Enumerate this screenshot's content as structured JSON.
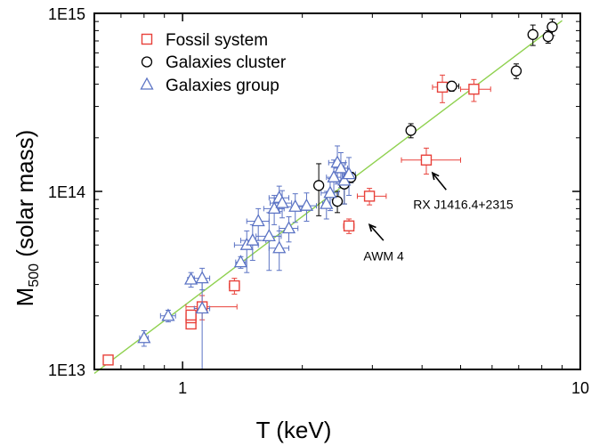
{
  "chart_data": {
    "type": "scatter",
    "xscale": "log",
    "yscale": "log",
    "xlim": [
      0.6,
      10
    ],
    "ylim": [
      10000000000000.0,
      1000000000000000.0
    ],
    "xlabel": "T (keV)",
    "ylabel_main": "M",
    "ylabel_sub": "500",
    "ylabel_rest": " (solar mass)",
    "x_ticks": [
      {
        "value": 1,
        "label": "1"
      },
      {
        "value": 10,
        "label": "10"
      }
    ],
    "y_ticks": [
      {
        "value": 10000000000000.0,
        "label": "1E13"
      },
      {
        "value": 100000000000000.0,
        "label": "1E14"
      },
      {
        "value": 1000000000000000.0,
        "label": "1E15"
      }
    ],
    "fit_line": {
      "from": [
        0.6,
        9500000000000.0
      ],
      "to": [
        9.0,
        910000000000000.0
      ],
      "color": "#8fd14f"
    },
    "series": [
      {
        "name": "Fossil system",
        "marker": "square",
        "color": "#e8413a",
        "points": [
          {
            "x": 0.65,
            "y": 11300000000000.0,
            "xerr": [
              0.015,
              0.015
            ],
            "yerr": [
              400000000000.0,
              400000000000.0
            ]
          },
          {
            "x": 1.05,
            "y": 18000000000000.0,
            "xerr": [
              0.02,
              0.02
            ],
            "yerr": [
              1000000000000.0,
              1000000000000.0
            ]
          },
          {
            "x": 1.05,
            "y": 19500000000000.0,
            "xerr": [
              0.02,
              0.02
            ],
            "yerr": [
              1200000000000.0,
              1200000000000.0
            ]
          },
          {
            "x": 1.05,
            "y": 20200000000000.0,
            "xerr": [
              0.02,
              0.02
            ],
            "yerr": [
              1200000000000.0,
              1200000000000.0
            ]
          },
          {
            "x": 1.12,
            "y": 22500000000000.0,
            "xerr": [
              0.1,
              0.25
            ],
            "yerr": [
              3500000000000.0,
              3500000000000.0
            ]
          },
          {
            "x": 1.35,
            "y": 29500000000000.0,
            "xerr": [
              0.04,
              0.04
            ],
            "yerr": [
              3000000000000.0,
              3000000000000.0
            ]
          },
          {
            "x": 2.62,
            "y": 64000000000000.0,
            "xerr": [
              0.08,
              0.08
            ],
            "yerr": [
              6000000000000.0,
              6000000000000.0
            ]
          },
          {
            "x": 2.95,
            "y": 94000000000000.0,
            "xerr": [
              0.2,
              0.3
            ],
            "yerr": [
              10000000000000.0,
              10000000000000.0
            ]
          },
          {
            "x": 4.1,
            "y": 150000000000000.0,
            "xerr": [
              0.55,
              0.9
            ],
            "yerr": [
              25000000000000.0,
              25000000000000.0
            ]
          },
          {
            "x": 4.5,
            "y": 385000000000000.0,
            "xerr": [
              0.25,
              0.35
            ],
            "yerr": [
              70000000000000.0,
              65000000000000.0
            ]
          },
          {
            "x": 5.4,
            "y": 375000000000000.0,
            "xerr": [
              0.4,
              0.55
            ],
            "yerr": [
              55000000000000.0,
              50000000000000.0
            ]
          }
        ]
      },
      {
        "name": "Galaxies cluster",
        "marker": "circle",
        "color": "#000000",
        "points": [
          {
            "x": 2.2,
            "y": 108000000000000.0,
            "xerr": [
              0,
              0
            ],
            "yerr": [
              35000000000000.0,
              35000000000000.0
            ]
          },
          {
            "x": 2.45,
            "y": 88000000000000.0,
            "xerr": [
              0,
              0
            ],
            "yerr": [
              12000000000000.0,
              12000000000000.0
            ]
          },
          {
            "x": 2.55,
            "y": 110000000000000.0,
            "xerr": [
              0,
              0
            ],
            "yerr": [
              25000000000000.0,
              25000000000000.0
            ]
          },
          {
            "x": 2.65,
            "y": 120000000000000.0,
            "xerr": [
              0,
              0
            ],
            "yerr": [
              8000000000000.0,
              8000000000000.0
            ]
          },
          {
            "x": 3.75,
            "y": 220000000000000.0,
            "xerr": [
              0,
              0
            ],
            "yerr": [
              20000000000000.0,
              20000000000000.0
            ]
          },
          {
            "x": 4.75,
            "y": 390000000000000.0,
            "xerr": [
              0.2,
              0.2
            ],
            "yerr": [
              25000000000000.0,
              25000000000000.0
            ]
          },
          {
            "x": 6.9,
            "y": 475000000000000.0,
            "xerr": [
              0,
              0
            ],
            "yerr": [
              45000000000000.0,
              45000000000000.0
            ]
          },
          {
            "x": 7.6,
            "y": 760000000000000.0,
            "xerr": [
              0,
              0
            ],
            "yerr": [
              100000000000000.0,
              100000000000000.0
            ]
          },
          {
            "x": 8.3,
            "y": 740000000000000.0,
            "xerr": [
              0.2,
              0.2
            ],
            "yerr": [
              60000000000000.0,
              60000000000000.0
            ]
          },
          {
            "x": 8.5,
            "y": 840000000000000.0,
            "xerr": [
              0,
              0
            ],
            "yerr": [
              90000000000000.0,
              90000000000000.0
            ]
          }
        ]
      },
      {
        "name": "Galaxies group",
        "marker": "triangle",
        "color": "#5b73c4",
        "points": [
          {
            "x": 0.8,
            "y": 15000000000000.0,
            "xerr": [
              0.02,
              0.02
            ],
            "yerr": [
              1500000000000.0,
              1500000000000.0
            ]
          },
          {
            "x": 0.92,
            "y": 20000000000000.0,
            "xerr": [
              0.04,
              0.04
            ],
            "yerr": [
              1500000000000.0,
              1500000000000.0
            ]
          },
          {
            "x": 1.05,
            "y": 32000000000000.0,
            "xerr": [
              0.02,
              0.02
            ],
            "yerr": [
              3000000000000.0,
              3000000000000.0
            ]
          },
          {
            "x": 1.12,
            "y": 32500000000000.0,
            "xerr": [
              0.05,
              0.05
            ],
            "yerr": [
              4500000000000.0,
              4500000000000.0
            ]
          },
          {
            "x": 1.12,
            "y": 22000000000000.0,
            "xerr": [
              0.05,
              0.05
            ],
            "yerr": [
              12000000000000.0,
              11000000000000.0
            ]
          },
          {
            "x": 1.4,
            "y": 40000000000000.0,
            "xerr": [
              0.04,
              0.04
            ],
            "yerr": [
              3000000000000.0,
              3000000000000.0
            ]
          },
          {
            "x": 1.45,
            "y": 50000000000000.0,
            "xerr": [
              0.1,
              0.1
            ],
            "yerr": [
              15000000000000.0,
              10000000000000.0
            ]
          },
          {
            "x": 1.5,
            "y": 53000000000000.0,
            "xerr": [
              0.1,
              0.12
            ],
            "yerr": [
              12000000000000.0,
              12000000000000.0
            ]
          },
          {
            "x": 1.55,
            "y": 68000000000000.0,
            "xerr": [
              0.1,
              0.1
            ],
            "yerr": [
              15000000000000.0,
              12000000000000.0
            ]
          },
          {
            "x": 1.65,
            "y": 56000000000000.0,
            "xerr": [
              0.12,
              0.12
            ],
            "yerr": [
              20000000000000.0,
              20000000000000.0
            ]
          },
          {
            "x": 1.75,
            "y": 48000000000000.0,
            "xerr": [
              0.1,
              0.1
            ],
            "yerr": [
              12000000000000.0,
              12000000000000.0
            ]
          },
          {
            "x": 1.7,
            "y": 80000000000000.0,
            "xerr": [
              0.1,
              0.1
            ],
            "yerr": [
              15000000000000.0,
              15000000000000.0
            ]
          },
          {
            "x": 1.75,
            "y": 92000000000000.0,
            "xerr": [
              0.1,
              0.1
            ],
            "yerr": [
              15000000000000.0,
              15000000000000.0
            ]
          },
          {
            "x": 1.78,
            "y": 86000000000000.0,
            "xerr": [
              0.12,
              0.1
            ],
            "yerr": [
              15000000000000.0,
              15000000000000.0
            ]
          },
          {
            "x": 1.85,
            "y": 62000000000000.0,
            "xerr": [
              0.1,
              0.1
            ],
            "yerr": [
              10000000000000.0,
              10000000000000.0
            ]
          },
          {
            "x": 1.92,
            "y": 82000000000000.0,
            "xerr": [
              0.12,
              0.12
            ],
            "yerr": [
              15000000000000.0,
              15000000000000.0
            ]
          },
          {
            "x": 2.05,
            "y": 83000000000000.0,
            "xerr": [
              0.12,
              0.12
            ],
            "yerr": [
              15000000000000.0,
              15000000000000.0
            ]
          },
          {
            "x": 2.3,
            "y": 85000000000000.0,
            "xerr": [
              0.05,
              0.05
            ],
            "yerr": [
              15000000000000.0,
              15000000000000.0
            ]
          },
          {
            "x": 2.35,
            "y": 98000000000000.0,
            "xerr": [
              0.12,
              0.12
            ],
            "yerr": [
              20000000000000.0,
              20000000000000.0
            ]
          },
          {
            "x": 2.4,
            "y": 120000000000000.0,
            "xerr": [
              0.1,
              0.1
            ],
            "yerr": [
              30000000000000.0,
              30000000000000.0
            ]
          },
          {
            "x": 2.45,
            "y": 145000000000000.0,
            "xerr": [
              0.12,
              0.12
            ],
            "yerr": [
              35000000000000.0,
              35000000000000.0
            ]
          },
          {
            "x": 2.5,
            "y": 135000000000000.0,
            "xerr": [
              0.1,
              0.1
            ],
            "yerr": [
              30000000000000.0,
              30000000000000.0
            ]
          },
          {
            "x": 2.55,
            "y": 115000000000000.0,
            "xerr": [
              0.12,
              0.12
            ],
            "yerr": [
              30000000000000.0,
              30000000000000.0
            ]
          },
          {
            "x": 2.62,
            "y": 125000000000000.0,
            "xerr": [
              0.1,
              0.1
            ],
            "yerr": [
              30000000000000.0,
              30000000000000.0
            ]
          }
        ]
      }
    ],
    "legend_position": "top-left",
    "annotations": [
      {
        "text": "RX J1416.4+2315",
        "arrow_from": [
          4.6,
          102000000000000.0
        ],
        "arrow_to": [
          4.25,
          127000000000000.0
        ],
        "text_at": [
          3.8,
          80000000000000.0
        ]
      },
      {
        "text": "AWM 4",
        "arrow_from": [
          3.2,
          53000000000000.0
        ],
        "arrow_to": [
          2.95,
          65000000000000.0
        ],
        "text_at": [
          2.85,
          41000000000000.0
        ]
      }
    ]
  }
}
